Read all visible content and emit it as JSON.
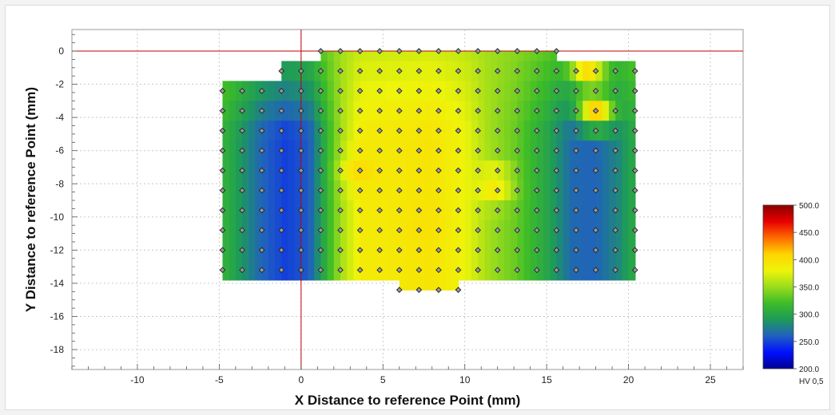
{
  "chart_data": {
    "type": "heatmap",
    "xlabel": "X Distance to reference Point (mm)",
    "ylabel": "Y Distance to reference Point (mm)",
    "xlim": [
      -14,
      27
    ],
    "ylim": [
      -19.2,
      1.3
    ],
    "x_ticks": [
      -10,
      -5,
      0,
      5,
      10,
      15,
      20,
      25
    ],
    "y_ticks": [
      0,
      -2,
      -4,
      -6,
      -8,
      -10,
      -12,
      -14,
      -16,
      -18
    ],
    "reference_lines": {
      "x": 0,
      "y": 0,
      "color": "#c00000"
    },
    "grid": true,
    "grid_spacing_mm": 1.2,
    "row_start_y_mm": 0,
    "rows": [
      {
        "x0": 1.2,
        "x1": 15.6
      },
      {
        "x0": -1.2,
        "x1": 20.4
      },
      {
        "x0": -4.8,
        "x1": 20.4
      },
      {
        "x0": -4.8,
        "x1": 20.4
      },
      {
        "x0": -4.8,
        "x1": 20.4
      },
      {
        "x0": -4.8,
        "x1": 20.4
      },
      {
        "x0": -4.8,
        "x1": 20.4
      },
      {
        "x0": -4.8,
        "x1": 20.4
      },
      {
        "x0": -4.8,
        "x1": 20.4
      },
      {
        "x0": -4.8,
        "x1": 20.4
      },
      {
        "x0": -4.8,
        "x1": 20.4
      },
      {
        "x0": -4.8,
        "x1": 20.4
      },
      {
        "x0": 6.0,
        "x1": 9.6
      }
    ],
    "hardness_profile_x": [
      -4.8,
      -2.4,
      -1.0,
      0.5,
      2.4,
      3.6,
      6.0,
      8.0,
      10.0,
      11.5,
      13.0,
      15.0,
      16.5,
      18.0,
      19.4,
      20.4
    ],
    "hardness_profile_hv": [
      312,
      262,
      248,
      258,
      352,
      388,
      392,
      395,
      380,
      352,
      335,
      300,
      265,
      262,
      280,
      305
    ],
    "hotspots": [
      {
        "x": 3.6,
        "y": -7.2,
        "hv": 400
      },
      {
        "x": 11.8,
        "y": -8.0,
        "hv": 395
      },
      {
        "x": 18.0,
        "y": -3.6,
        "hv": 410
      },
      {
        "x": 17.5,
        "y": -1.2,
        "hv": 400
      },
      {
        "x": 7.5,
        "y": -10.4,
        "hv": 398
      }
    ],
    "colorbar": {
      "min": 200.0,
      "max": 500.0,
      "tick_values": [
        500.0,
        450.0,
        400.0,
        350.0,
        300.0,
        250.0,
        200.0
      ],
      "tick_labels": [
        "500.0",
        "450.0",
        "400.0",
        "350.0",
        "300.0",
        "250.0",
        "200.0"
      ],
      "unit_label": "HV 0,5",
      "colors": [
        "#000090",
        "#0010ff",
        "#2060c0",
        "#1e9a5a",
        "#3cbc28",
        "#9bdc1c",
        "#eef40a",
        "#ffd400",
        "#ff6a00",
        "#e80000",
        "#8a0000"
      ]
    },
    "marker": {
      "fill": "#9a9a9a",
      "stroke": "#222222"
    }
  }
}
